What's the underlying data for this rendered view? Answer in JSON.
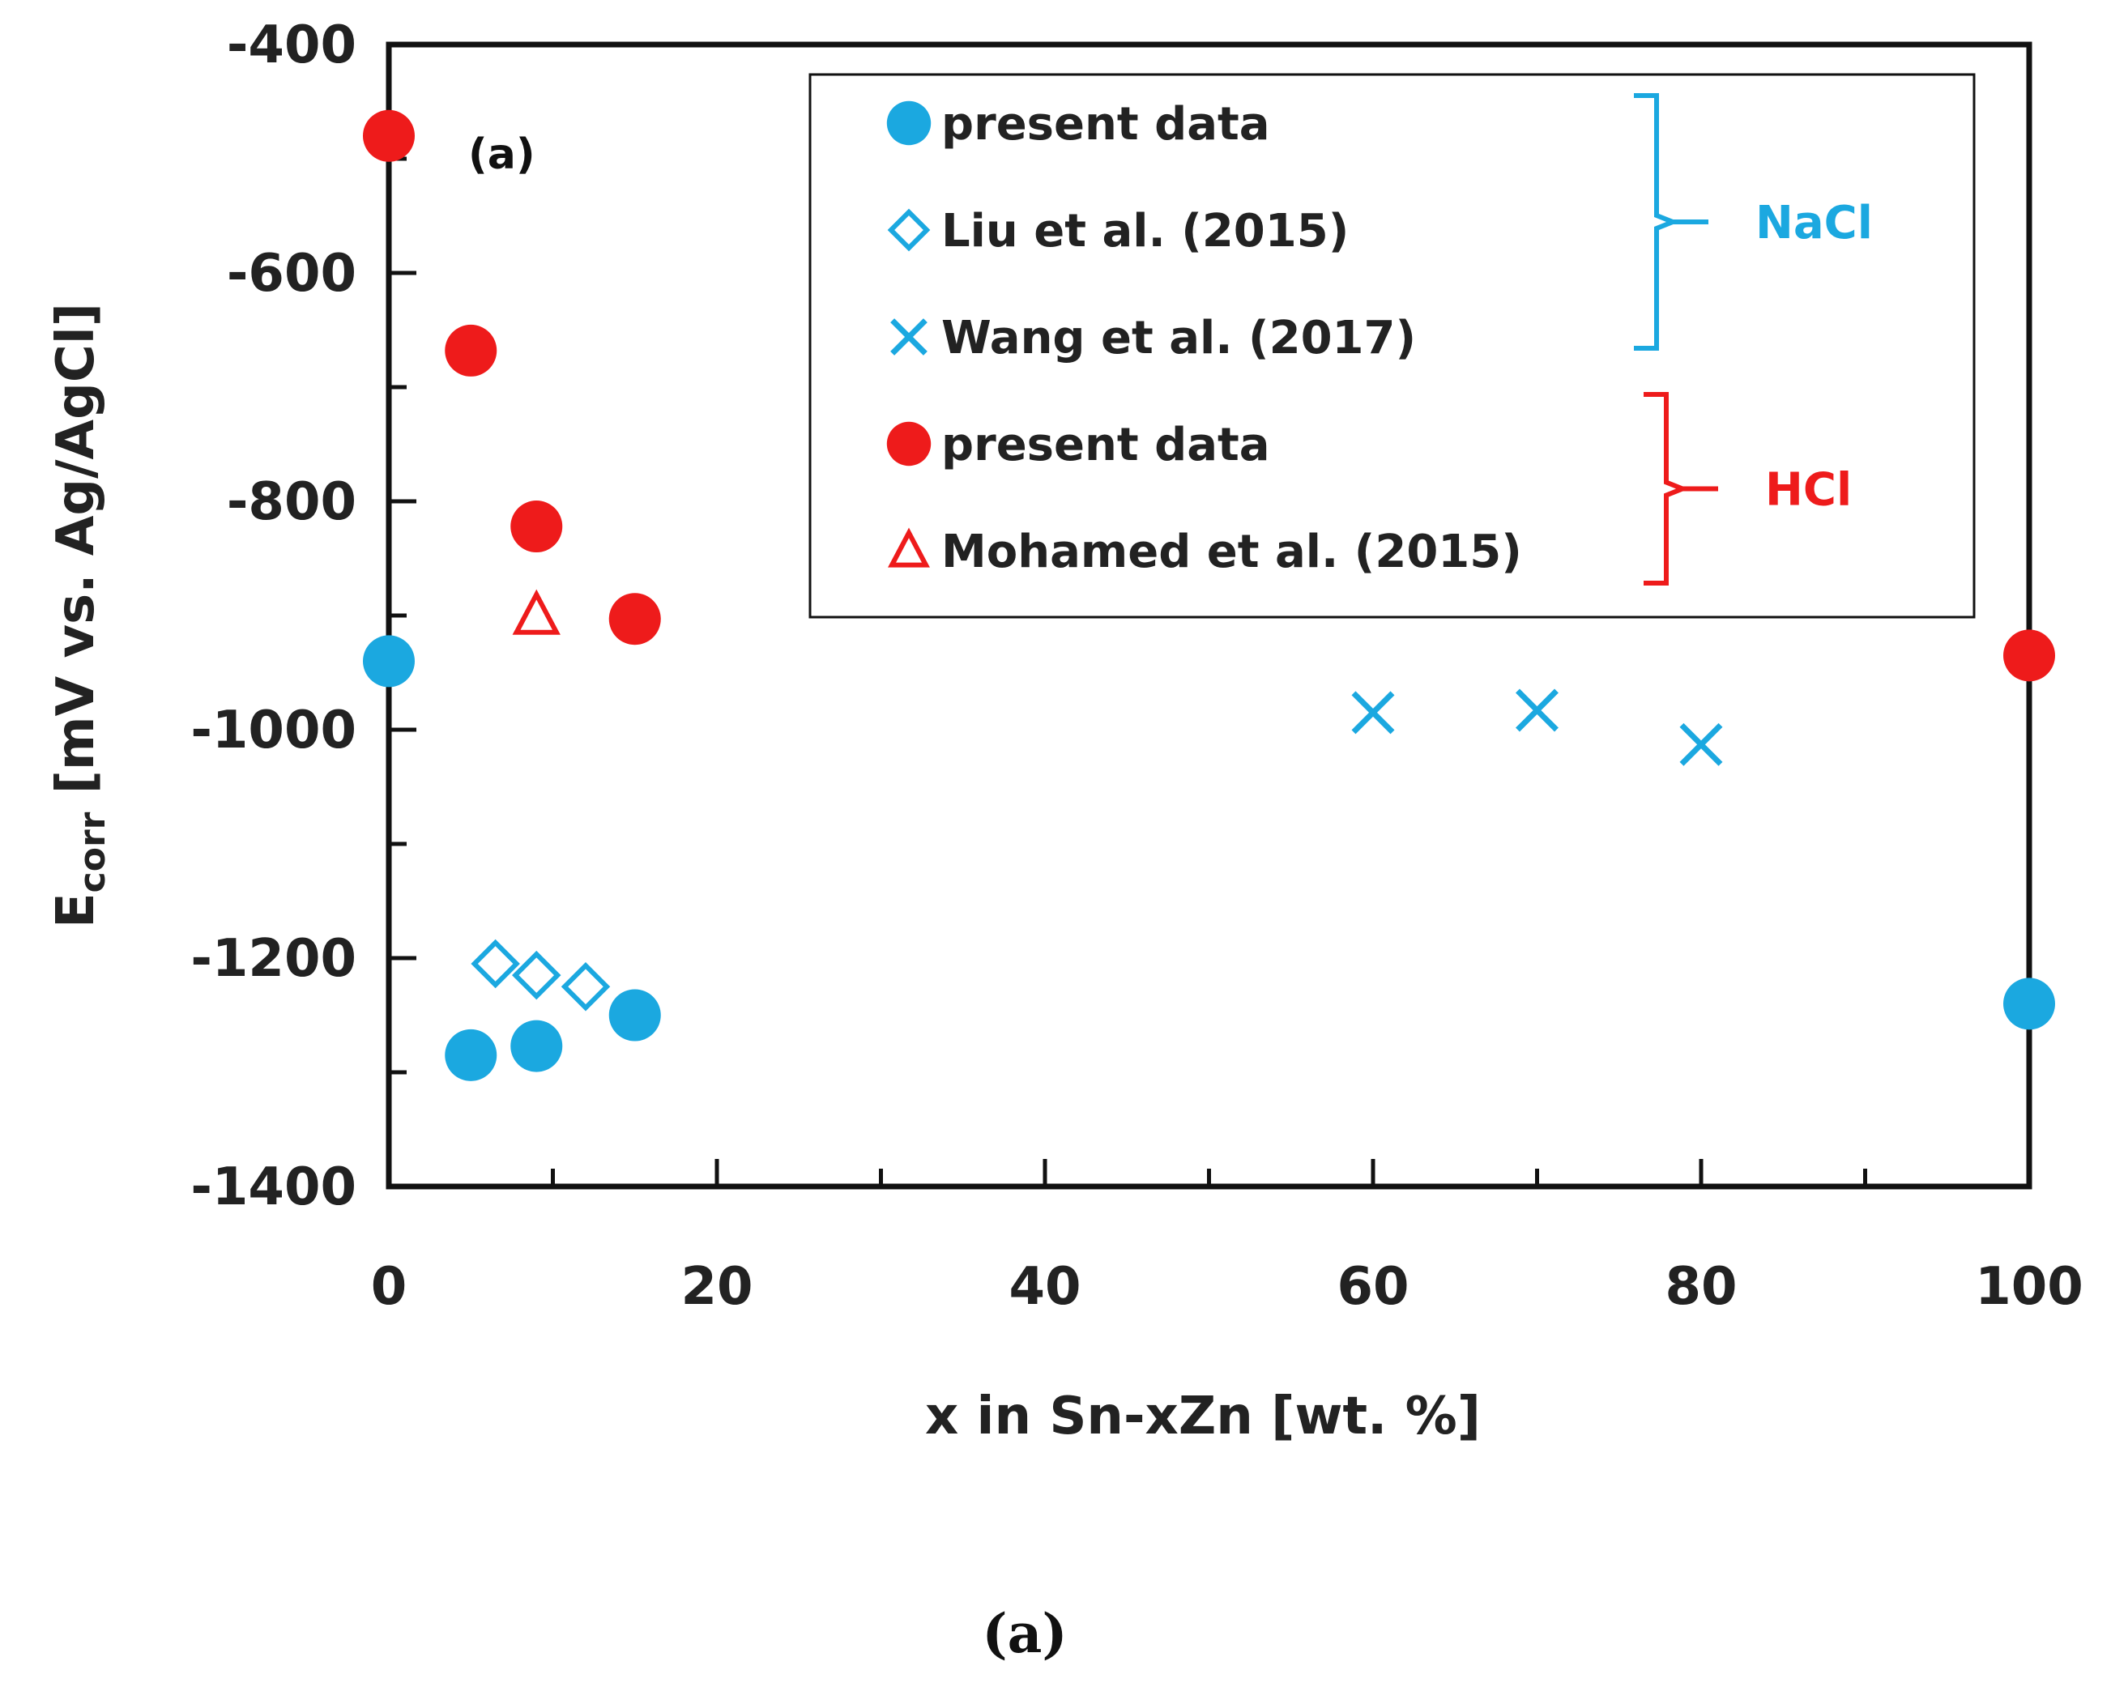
{
  "chart_data": {
    "type": "scatter",
    "title": "",
    "panel_label": "(a)",
    "caption": "(a)",
    "xlabel": "x in Sn-xZn [wt. %]",
    "ylabel_main": "E",
    "ylabel_sub": "corr",
    "ylabel_rest": " [mV vs. Ag/AgCl]",
    "xlim": [
      0,
      100
    ],
    "ylim": [
      -1400,
      -400
    ],
    "x_ticks": [
      0,
      20,
      40,
      60,
      80,
      100
    ],
    "y_ticks": [
      -400,
      -600,
      -800,
      -1000,
      -1200,
      -1400
    ],
    "x_tick_labels": [
      "0",
      "20",
      "40",
      "60",
      "80",
      "100"
    ],
    "y_tick_labels": [
      "-400",
      "-600",
      "-800",
      "-1000",
      "-1200",
      "-1400"
    ],
    "x_minor_step": 10,
    "y_minor_step": 100,
    "grid": false,
    "legend_position": "top-right",
    "series": [
      {
        "name": "present data",
        "group": "NaCl",
        "marker": "circle-filled",
        "color": "#1ba8e0",
        "x": [
          0,
          5,
          9,
          15,
          100
        ],
        "y": [
          -940,
          -1285,
          -1277,
          -1250,
          -1240
        ]
      },
      {
        "name": "Liu et al. (2015)",
        "group": "NaCl",
        "marker": "diamond-open",
        "color": "#1ba8e0",
        "x": [
          6.5,
          9,
          12
        ],
        "y": [
          -1205,
          -1215,
          -1225
        ]
      },
      {
        "name": "Wang et al. (2017)",
        "group": "NaCl",
        "marker": "cross",
        "color": "#1ba8e0",
        "x": [
          60,
          70,
          80
        ],
        "y": [
          -985,
          -983,
          -1013
        ]
      },
      {
        "name": "present data",
        "group": "HCl",
        "marker": "circle-filled",
        "color": "#ee1b1b",
        "x": [
          0,
          5,
          9,
          15,
          100
        ],
        "y": [
          -480,
          -668,
          -822,
          -903,
          -935
        ]
      },
      {
        "name": "Mohamed et al. (2015)",
        "group": "HCl",
        "marker": "triangle-open",
        "color": "#ee1b1b",
        "x": [
          9
        ],
        "y": [
          -900
        ]
      }
    ],
    "groups": [
      {
        "name": "NaCl",
        "color": "#1ba8e0"
      },
      {
        "name": "HCl",
        "color": "#ee1b1b"
      }
    ]
  }
}
